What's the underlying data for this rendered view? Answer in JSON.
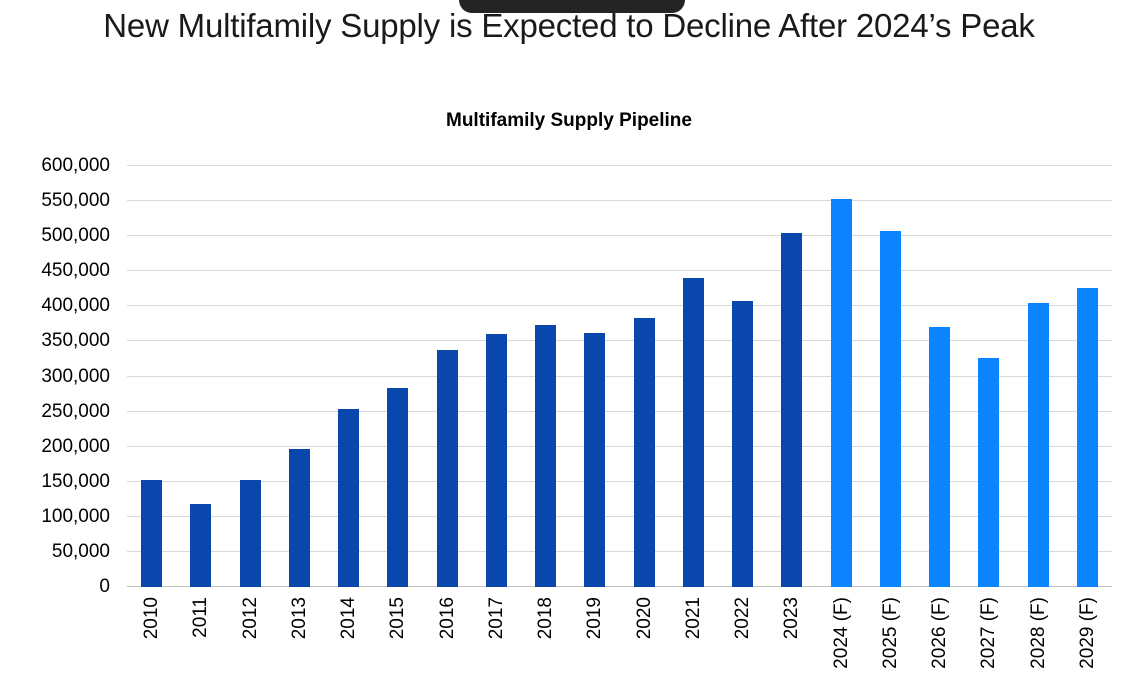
{
  "main_title": "New Multifamily Supply is Expected to Decline After 2024’s Peak",
  "notch": {
    "color": "#242424"
  },
  "chart_data": {
    "type": "bar",
    "title": "Multifamily Supply Pipeline",
    "categories": [
      "2010",
      "2011",
      "2012",
      "2013",
      "2014",
      "2015",
      "2016",
      "2017",
      "2018",
      "2019",
      "2020",
      "2021",
      "2022",
      "2023",
      "2024 (F)",
      "2025 (F)",
      "2026 (F)",
      "2027 (F)",
      "2028 (F)",
      "2029 (F)"
    ],
    "values": [
      153000,
      118000,
      153000,
      196000,
      254000,
      284000,
      338000,
      360000,
      373000,
      362000,
      383000,
      441000,
      407000,
      504000,
      553000,
      508000,
      371000,
      327000,
      405000,
      426000
    ],
    "forecast_start_index": 14,
    "colors": {
      "historical": "#0a47ac",
      "forecast": "#0a84ff"
    },
    "xlabel": "",
    "ylabel": "",
    "ylim": [
      0,
      600000
    ],
    "y_tick_step": 50000,
    "y_tick_labels": [
      "0",
      "50,000",
      "100,000",
      "150,000",
      "200,000",
      "250,000",
      "300,000",
      "350,000",
      "400,000",
      "450,000",
      "500,000",
      "550,000",
      "600,000"
    ],
    "grid": true,
    "gridline_color": "#d9d9d9",
    "axis_line_color": "#bfbfbf",
    "legend": "none"
  }
}
